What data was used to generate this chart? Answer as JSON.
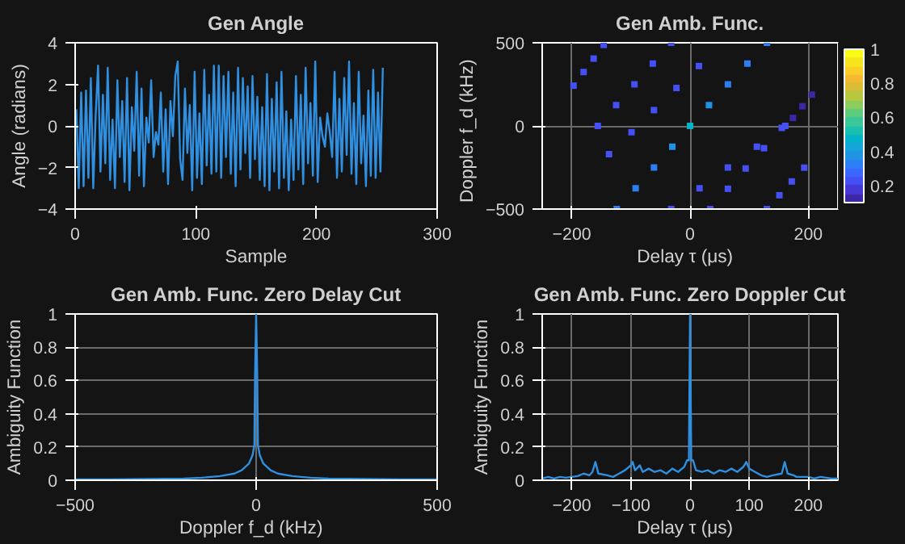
{
  "chart_data": [
    {
      "type": "line",
      "title": "Gen Angle",
      "xlabel": "Sample",
      "ylabel": "Angle (radians)",
      "xlim": [
        0,
        300
      ],
      "xticks": [
        0,
        100,
        200,
        300
      ],
      "ylim": [
        -4,
        4
      ],
      "yticks": [
        -4,
        -2,
        0,
        2,
        4
      ],
      "grid": false,
      "series": [
        {
          "color": "#2f8fe0",
          "x": [
            1,
            3,
            5,
            7,
            9,
            11,
            13,
            15,
            17,
            19,
            21,
            23,
            25,
            27,
            29,
            31,
            33,
            35,
            37,
            39,
            41,
            43,
            45,
            47,
            49,
            51,
            53,
            55,
            57,
            59,
            61,
            63,
            65,
            67,
            69,
            71,
            73,
            75,
            77,
            79,
            81,
            83,
            85,
            87,
            89,
            91,
            93,
            95,
            97,
            99,
            101,
            103,
            105,
            107,
            109,
            111,
            113,
            115,
            117,
            119,
            121,
            123,
            125,
            127,
            129,
            131,
            133,
            135,
            137,
            139,
            141,
            143,
            145,
            147,
            149,
            151,
            153,
            155,
            157,
            159,
            161,
            163,
            165,
            167,
            169,
            171,
            173,
            175,
            177,
            179,
            181,
            183,
            185,
            187,
            189,
            191,
            193,
            195,
            197,
            199,
            201,
            203,
            205,
            207,
            209,
            211,
            213,
            215,
            217,
            219,
            221,
            223,
            225,
            227,
            229,
            231,
            233,
            235,
            237,
            239,
            241,
            243,
            245,
            247,
            249,
            251,
            253,
            255
          ],
          "values": [
            0.8,
            -3,
            1.6,
            -2.9,
            1.7,
            -2.5,
            2.3,
            -3,
            0.5,
            2.9,
            -2.2,
            1.5,
            -1.8,
            2.8,
            -2.6,
            0.3,
            -3,
            2.2,
            -1.5,
            1.2,
            -2.7,
            2.3,
            -3.1,
            0.9,
            -1.2,
            2.6,
            -2.4,
            1.8,
            -2.9,
            0.4,
            -0.8,
            2.2,
            -1.5,
            -0.3,
            -0.9,
            1.6,
            -2.2,
            0.8,
            -2.8,
            1.2,
            -0.5,
            2.4,
            3.1,
            -1.6,
            -2.6,
            1.8,
            -1.3,
            1,
            -3.1,
            2.6,
            -2.5,
            0.6,
            -2.8,
            2.7,
            -1.9,
            1.5,
            -2.3,
            2.9,
            -2.2,
            2.9,
            -2.5,
            2.4,
            -1.5,
            2.6,
            -2.3,
            1.6,
            -2.9,
            2.8,
            -2.1,
            2.3,
            -1.3,
            1.9,
            -2.5,
            2.4,
            -1.6,
            1.4,
            -2.6,
            0.9,
            -2.9,
            2.5,
            -3.1,
            1.3,
            -2.2,
            2.1,
            -3,
            2.6,
            -2.5,
            0.7,
            -3.1,
            0.3,
            -2.6,
            2.4,
            -2.1,
            1.5,
            -2.8,
            2.8,
            -1.8,
            1.1,
            -2.4,
            3.1,
            -2.7,
            0.4,
            -0.5,
            -1,
            0.6,
            -0.3,
            -1.5,
            2.6,
            -2.5,
            1.3,
            -2.2,
            2.3,
            -1.4,
            3.1,
            -2.3,
            1.1,
            -2.8,
            2.6,
            -1.8,
            0.5,
            -2.9,
            1.7,
            -2.4,
            2.7,
            -2.5,
            1.6,
            -2.2,
            2.8
          ]
        }
      ]
    },
    {
      "type": "scatter",
      "title": "Gen Amb. Func.",
      "xlabel": "Delay  τ  (μs)",
      "ylabel": "Doppler  f_d  (kHz)",
      "xlim": [
        -250,
        250
      ],
      "xticks": [
        -200,
        0,
        200
      ],
      "ylim": [
        -500,
        500
      ],
      "yticks": [
        -500,
        0,
        500
      ],
      "grid": true,
      "marker": "square",
      "clim": [
        0.1,
        1
      ],
      "cticks": [
        0.2,
        0.4,
        0.6,
        0.8,
        1
      ],
      "series": [
        {
          "x": [
            -124,
            -92,
            -61,
            -30,
            0,
            32,
            64,
            97,
            130,
            -197,
            -180,
            -163,
            -146,
            -156,
            -125,
            -94,
            -63,
            -32,
            -137,
            -99,
            -61,
            -23,
            15,
            -32,
            16,
            64,
            113,
            161,
            34,
            64,
            94,
            125,
            155,
            130,
            151,
            172,
            193,
            174,
            190,
            206
          ],
          "values": [
            -500,
            -375,
            -250,
            -125,
            0,
            125,
            250,
            375,
            500,
            242,
            324,
            405,
            487,
            0,
            125,
            250,
            375,
            500,
            -170,
            -38,
            95,
            228,
            360,
            -500,
            -375,
            -250,
            -125,
            0,
            -500,
            -378,
            -256,
            -134,
            -12,
            -500,
            -417,
            -334,
            -251,
            48,
            118,
            188
          ],
          "cvalues": [
            0.3,
            0.3,
            0.32,
            0.38,
            0.45,
            0.38,
            0.32,
            0.3,
            0.3,
            0.2,
            0.2,
            0.2,
            0.2,
            0.22,
            0.22,
            0.22,
            0.22,
            0.22,
            0.2,
            0.2,
            0.2,
            0.2,
            0.2,
            0.22,
            0.22,
            0.22,
            0.22,
            0.22,
            0.22,
            0.22,
            0.22,
            0.22,
            0.22,
            0.2,
            0.2,
            0.2,
            0.2,
            0.15,
            0.15,
            0.15
          ]
        }
      ]
    },
    {
      "type": "line",
      "title": "Gen Amb. Func. Zero Delay Cut",
      "xlabel": "Doppler  f_d  (kHz)",
      "ylabel": "Ambiguity Function",
      "xlim": [
        -500,
        500
      ],
      "xticks": [
        -500,
        0,
        500
      ],
      "ylim": [
        0,
        1
      ],
      "yticks": [
        0,
        0.2,
        0.4,
        0.6,
        0.8,
        1
      ],
      "grid": true,
      "series": [
        {
          "color": "#2f8fe0",
          "x": [
            -500,
            -400,
            -300,
            -200,
            -150,
            -100,
            -60,
            -40,
            -20,
            -10,
            -5,
            -3,
            -1,
            0,
            1,
            3,
            5,
            10,
            20,
            40,
            60,
            100,
            150,
            200,
            300,
            400,
            500
          ],
          "values": [
            0.005,
            0.005,
            0.008,
            0.01,
            0.015,
            0.025,
            0.04,
            0.06,
            0.1,
            0.15,
            0.21,
            0.63,
            0.88,
            1,
            0.88,
            0.63,
            0.21,
            0.15,
            0.1,
            0.06,
            0.04,
            0.025,
            0.015,
            0.01,
            0.008,
            0.005,
            0.005
          ]
        }
      ]
    },
    {
      "type": "line",
      "title": "Gen Amb. Func. Zero Doppler Cut",
      "xlabel": "Delay  τ  (μs)",
      "ylabel": "Ambiguity Function",
      "xlim": [
        -250,
        250
      ],
      "xticks": [
        -200,
        -100,
        0,
        100,
        200
      ],
      "ylim": [
        0,
        1
      ],
      "yticks": [
        0,
        0.2,
        0.4,
        0.6,
        0.8,
        1
      ],
      "grid": true,
      "series": [
        {
          "color": "#2f8fe0",
          "x": [
            -250,
            -240,
            -230,
            -220,
            -210,
            -200,
            -190,
            -180,
            -170,
            -165,
            -160,
            -155,
            -140,
            -130,
            -120,
            -110,
            -100,
            -97,
            -93,
            -85,
            -80,
            -70,
            -60,
            -50,
            -40,
            -30,
            -20,
            -10,
            -5,
            -2,
            0,
            2,
            5,
            10,
            20,
            30,
            40,
            50,
            60,
            70,
            80,
            90,
            95,
            100,
            110,
            120,
            130,
            140,
            155,
            160,
            165,
            175,
            180,
            200,
            210,
            220,
            230,
            240,
            250
          ],
          "values": [
            0.01,
            0.02,
            0.01,
            0.02,
            0.015,
            0.02,
            0.025,
            0.04,
            0.03,
            0.05,
            0.11,
            0.04,
            0.03,
            0.02,
            0.04,
            0.06,
            0.09,
            0.11,
            0.06,
            0.09,
            0.05,
            0.07,
            0.05,
            0.06,
            0.04,
            0.07,
            0.05,
            0.08,
            0.12,
            0.12,
            1,
            0.12,
            0.12,
            0.06,
            0.05,
            0.06,
            0.04,
            0.06,
            0.05,
            0.07,
            0.05,
            0.08,
            0.11,
            0.07,
            0.05,
            0.03,
            0.02,
            0.03,
            0.04,
            0.11,
            0.04,
            0.03,
            0.02,
            0.02,
            0.01,
            0.02,
            0.015,
            0.01,
            0.01
          ]
        }
      ]
    }
  ]
}
